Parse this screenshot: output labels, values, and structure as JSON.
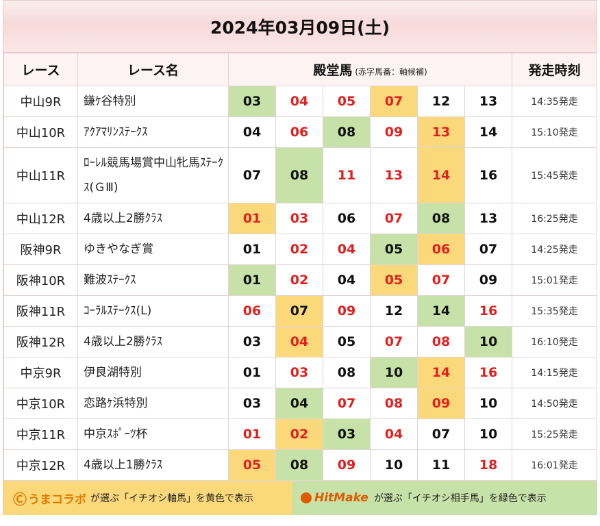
{
  "title": "2024年03月09日(土)",
  "headers": {
    "race": "レース",
    "race_name": "レース名",
    "horses": "殿堂馬",
    "horses_note": "(赤字馬番：軸候補)",
    "start_time": "発走時刻"
  },
  "colors": {
    "red": "#e0201e",
    "yellow": "#fbd97a",
    "green": "#c6e2a8"
  },
  "rows": [
    {
      "race": "中山9R",
      "name": "鎌ｹ谷特別",
      "time": "14:35発走",
      "horses": [
        {
          "n": "03",
          "red": false,
          "bg": "green"
        },
        {
          "n": "04",
          "red": true,
          "bg": ""
        },
        {
          "n": "05",
          "red": true,
          "bg": ""
        },
        {
          "n": "07",
          "red": true,
          "bg": "yellow"
        },
        {
          "n": "12",
          "red": false,
          "bg": ""
        },
        {
          "n": "13",
          "red": false,
          "bg": ""
        }
      ]
    },
    {
      "race": "中山10R",
      "name": "ｱｸｱﾏﾘﾝｽﾃｰｸｽ",
      "time": "15:10発走",
      "horses": [
        {
          "n": "04",
          "red": false,
          "bg": ""
        },
        {
          "n": "06",
          "red": true,
          "bg": ""
        },
        {
          "n": "08",
          "red": false,
          "bg": "green"
        },
        {
          "n": "09",
          "red": true,
          "bg": ""
        },
        {
          "n": "13",
          "red": true,
          "bg": "yellow"
        },
        {
          "n": "14",
          "red": false,
          "bg": ""
        }
      ]
    },
    {
      "race": "中山11R",
      "name": "ﾛｰﾚﾙ競馬場賞中山牝馬ｽﾃｰｸｽ(ＧⅢ)",
      "time": "15:45発走",
      "tall": true,
      "horses": [
        {
          "n": "07",
          "red": false,
          "bg": ""
        },
        {
          "n": "08",
          "red": false,
          "bg": "green"
        },
        {
          "n": "11",
          "red": true,
          "bg": ""
        },
        {
          "n": "13",
          "red": true,
          "bg": ""
        },
        {
          "n": "14",
          "red": true,
          "bg": "yellow"
        },
        {
          "n": "16",
          "red": false,
          "bg": ""
        }
      ]
    },
    {
      "race": "中山12R",
      "name": "4歳以上2勝ｸﾗｽ",
      "time": "16:25発走",
      "horses": [
        {
          "n": "01",
          "red": true,
          "bg": "yellow"
        },
        {
          "n": "03",
          "red": true,
          "bg": ""
        },
        {
          "n": "06",
          "red": false,
          "bg": ""
        },
        {
          "n": "07",
          "red": true,
          "bg": ""
        },
        {
          "n": "08",
          "red": false,
          "bg": "green"
        },
        {
          "n": "13",
          "red": false,
          "bg": ""
        }
      ]
    },
    {
      "race": "阪神9R",
      "name": "ゆきやなぎ賞",
      "time": "14:25発走",
      "horses": [
        {
          "n": "01",
          "red": false,
          "bg": ""
        },
        {
          "n": "02",
          "red": true,
          "bg": ""
        },
        {
          "n": "04",
          "red": true,
          "bg": ""
        },
        {
          "n": "05",
          "red": false,
          "bg": "green"
        },
        {
          "n": "06",
          "red": true,
          "bg": "yellow"
        },
        {
          "n": "07",
          "red": false,
          "bg": ""
        }
      ]
    },
    {
      "race": "阪神10R",
      "name": "難波ｽﾃｰｸｽ",
      "time": "15:01発走",
      "horses": [
        {
          "n": "01",
          "red": false,
          "bg": "green"
        },
        {
          "n": "02",
          "red": true,
          "bg": ""
        },
        {
          "n": "04",
          "red": false,
          "bg": ""
        },
        {
          "n": "05",
          "red": true,
          "bg": "yellow"
        },
        {
          "n": "07",
          "red": true,
          "bg": ""
        },
        {
          "n": "09",
          "red": false,
          "bg": ""
        }
      ]
    },
    {
      "race": "阪神11R",
      "name": "ｺｰﾗﾙｽﾃｰｸｽ(L)",
      "time": "15:35発走",
      "horses": [
        {
          "n": "06",
          "red": true,
          "bg": ""
        },
        {
          "n": "07",
          "red": false,
          "bg": "yellow"
        },
        {
          "n": "09",
          "red": true,
          "bg": ""
        },
        {
          "n": "12",
          "red": false,
          "bg": ""
        },
        {
          "n": "14",
          "red": false,
          "bg": "green"
        },
        {
          "n": "16",
          "red": true,
          "bg": ""
        }
      ]
    },
    {
      "race": "阪神12R",
      "name": "4歳以上2勝ｸﾗｽ",
      "time": "16:10発走",
      "horses": [
        {
          "n": "03",
          "red": false,
          "bg": ""
        },
        {
          "n": "04",
          "red": true,
          "bg": "yellow"
        },
        {
          "n": "05",
          "red": false,
          "bg": ""
        },
        {
          "n": "07",
          "red": true,
          "bg": ""
        },
        {
          "n": "08",
          "red": true,
          "bg": ""
        },
        {
          "n": "10",
          "red": false,
          "bg": "green"
        }
      ]
    },
    {
      "race": "中京9R",
      "name": "伊良湖特別",
      "time": "14:15発走",
      "horses": [
        {
          "n": "01",
          "red": false,
          "bg": ""
        },
        {
          "n": "03",
          "red": true,
          "bg": ""
        },
        {
          "n": "08",
          "red": false,
          "bg": ""
        },
        {
          "n": "10",
          "red": false,
          "bg": "green"
        },
        {
          "n": "14",
          "red": true,
          "bg": "yellow"
        },
        {
          "n": "16",
          "red": true,
          "bg": ""
        }
      ]
    },
    {
      "race": "中京10R",
      "name": "恋路ｹ浜特別",
      "time": "14:50発走",
      "horses": [
        {
          "n": "03",
          "red": false,
          "bg": ""
        },
        {
          "n": "04",
          "red": false,
          "bg": "green"
        },
        {
          "n": "07",
          "red": true,
          "bg": ""
        },
        {
          "n": "08",
          "red": true,
          "bg": ""
        },
        {
          "n": "09",
          "red": true,
          "bg": "yellow"
        },
        {
          "n": "10",
          "red": false,
          "bg": ""
        }
      ]
    },
    {
      "race": "中京11R",
      "name": "中京ｽﾎﾟｰﾂ杯",
      "time": "15:25発走",
      "horses": [
        {
          "n": "01",
          "red": true,
          "bg": ""
        },
        {
          "n": "02",
          "red": true,
          "bg": "yellow"
        },
        {
          "n": "03",
          "red": false,
          "bg": "green"
        },
        {
          "n": "04",
          "red": true,
          "bg": ""
        },
        {
          "n": "07",
          "red": false,
          "bg": ""
        },
        {
          "n": "10",
          "red": false,
          "bg": ""
        }
      ]
    },
    {
      "race": "中京12R",
      "name": "4歳以上1勝ｸﾗｽ",
      "time": "16:01発走",
      "horses": [
        {
          "n": "05",
          "red": true,
          "bg": "yellow"
        },
        {
          "n": "08",
          "red": false,
          "bg": "green"
        },
        {
          "n": "09",
          "red": true,
          "bg": ""
        },
        {
          "n": "10",
          "red": false,
          "bg": ""
        },
        {
          "n": "11",
          "red": false,
          "bg": ""
        },
        {
          "n": "18",
          "red": true,
          "bg": ""
        }
      ]
    }
  ],
  "footer": {
    "left_logo": "うまコラボ",
    "left_text": "が選ぶ「イチオシ軸馬」を黄色で表示",
    "right_logo": "HitMake",
    "right_text": "が選ぶ「イチオシ相手馬」を緑色で表示"
  }
}
